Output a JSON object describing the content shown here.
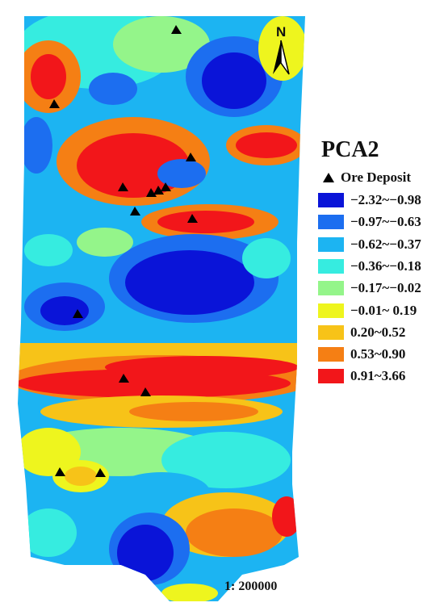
{
  "legend": {
    "title": "PCA2",
    "deposit_label": "Ore Deposit",
    "classes": [
      {
        "label": "−2.32~−0.98",
        "color": "#0a14d8"
      },
      {
        "label": "−0.97~−0.63",
        "color": "#1c6ef0"
      },
      {
        "label": "−0.62~−0.37",
        "color": "#1cb4f2"
      },
      {
        "label": "−0.36~−0.18",
        "color": "#36ece0"
      },
      {
        "label": "−0.17~−0.02",
        "color": "#94f58a"
      },
      {
        "label": "−0.01~ 0.19",
        "color": "#eef51e"
      },
      {
        "label": "0.20~0.52",
        "color": "#f7c318"
      },
      {
        "label": "0.53~0.90",
        "color": "#f57f14"
      },
      {
        "label": "0.91~3.66",
        "color": "#f2161a"
      }
    ]
  },
  "north_arrow": {
    "label": "N",
    "icon": "north-arrow-icon"
  },
  "scale_text": "1:  200000"
}
